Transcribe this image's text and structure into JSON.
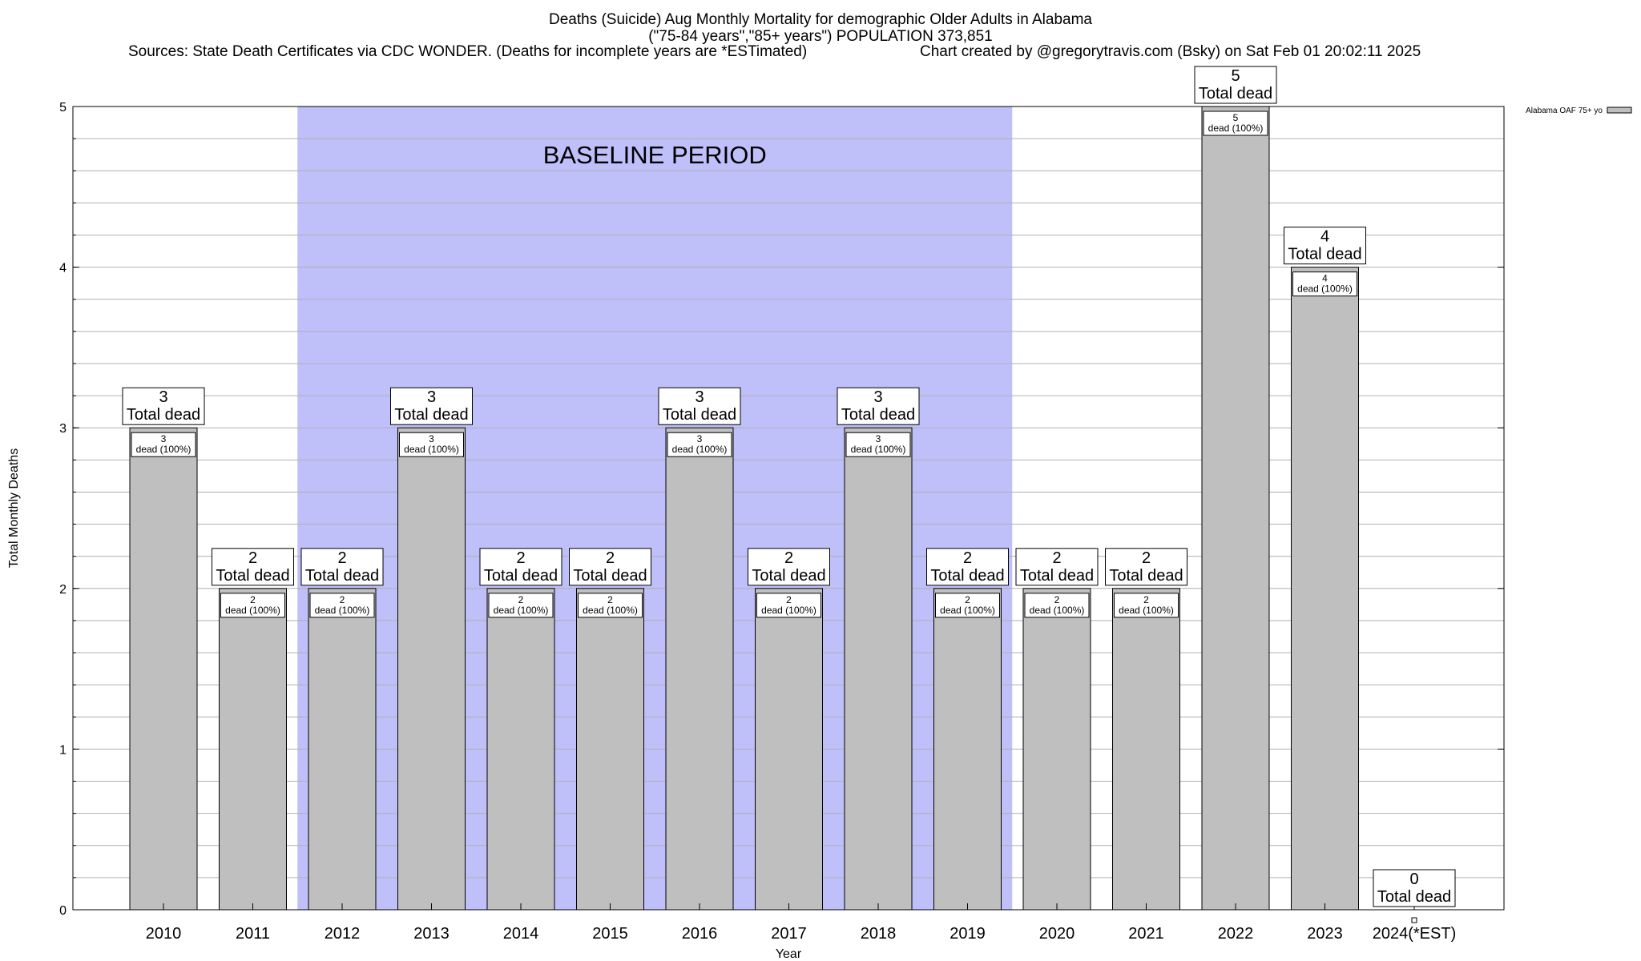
{
  "chart_data": {
    "type": "bar",
    "title_lines": [
      "Deaths (Suicide) Aug Monthly Mortality for demographic Older Adults in Alabama",
      "(\"75-84 years\",\"85+ years\") POPULATION 373,851"
    ],
    "sources": "Sources: State Death Certificates via CDC WONDER. (Deaths for incomplete years are *ESTimated)",
    "credit": "Chart created by @gregorytravis.com (Bsky) on Sat Feb 01 20:02:11 2025",
    "xlabel": "Year",
    "ylabel": "Total Monthly Deaths",
    "categories": [
      "2010",
      "2011",
      "2012",
      "2013",
      "2014",
      "2015",
      "2016",
      "2017",
      "2018",
      "2019",
      "2020",
      "2021",
      "2022",
      "2023",
      "2024(*EST)"
    ],
    "series": [
      {
        "name": "Alabama OAF 75+ yo",
        "values": [
          3,
          2,
          2,
          3,
          2,
          2,
          3,
          2,
          3,
          2,
          2,
          2,
          5,
          4,
          0
        ]
      }
    ],
    "total_label": "Total dead",
    "inner_label_suffix": "dead (100%)",
    "ylim": [
      0,
      5
    ],
    "yticks": [
      0,
      1,
      2,
      3,
      4,
      5
    ],
    "grid": true,
    "baseline_period": {
      "label": "BASELINE PERIOD",
      "start": "2012",
      "end": "2019",
      "color": "#bfbffa"
    },
    "legend_position": "top-right",
    "bar_color": "#bfbfbf",
    "bar_edge_color": "#000000"
  }
}
